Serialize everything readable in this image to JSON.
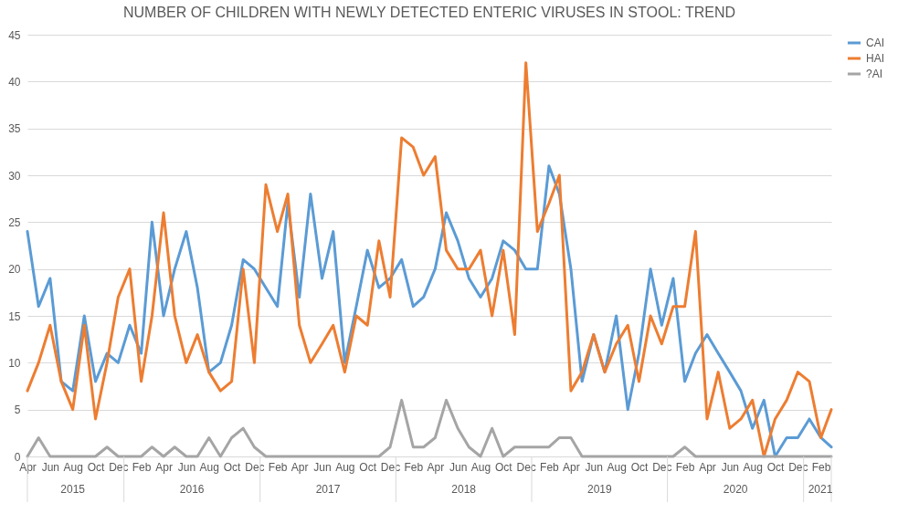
{
  "chart_data": {
    "type": "line",
    "title": "NUMBER OF CHILDREN WITH NEWLY DETECTED ENTERIC VIRUSES IN STOOL: TREND",
    "x": [
      "2015-04",
      "2015-05",
      "2015-06",
      "2015-07",
      "2015-08",
      "2015-09",
      "2015-10",
      "2015-11",
      "2015-12",
      "2016-01",
      "2016-02",
      "2016-03",
      "2016-04",
      "2016-05",
      "2016-06",
      "2016-07",
      "2016-08",
      "2016-09",
      "2016-10",
      "2016-11",
      "2016-12",
      "2017-01",
      "2017-02",
      "2017-03",
      "2017-04",
      "2017-05",
      "2017-06",
      "2017-07",
      "2017-08",
      "2017-09",
      "2017-10",
      "2017-11",
      "2017-12",
      "2018-01",
      "2018-02",
      "2018-03",
      "2018-04",
      "2018-05",
      "2018-06",
      "2018-07",
      "2018-08",
      "2018-09",
      "2018-10",
      "2018-11",
      "2018-12",
      "2019-01",
      "2019-02",
      "2019-03",
      "2019-04",
      "2019-05",
      "2019-06",
      "2019-07",
      "2019-08",
      "2019-09",
      "2019-10",
      "2019-11",
      "2019-12",
      "2020-01",
      "2020-02",
      "2020-03",
      "2020-04",
      "2020-05",
      "2020-06",
      "2020-07",
      "2020-08",
      "2020-09",
      "2020-10",
      "2020-11",
      "2020-12",
      "2021-01",
      "2021-02",
      "2021-03"
    ],
    "xticks": [
      {
        "value": "2015-04",
        "label": "Apr"
      },
      {
        "value": "2015-06",
        "label": "Jun"
      },
      {
        "value": "2015-08",
        "label": "Aug"
      },
      {
        "value": "2015-10",
        "label": "Oct"
      },
      {
        "value": "2015-12",
        "label": "Dec"
      },
      {
        "value": "2016-02",
        "label": "Feb"
      },
      {
        "value": "2016-04",
        "label": "Apr"
      },
      {
        "value": "2016-06",
        "label": "Jun"
      },
      {
        "value": "2016-08",
        "label": "Aug"
      },
      {
        "value": "2016-10",
        "label": "Oct"
      },
      {
        "value": "2016-12",
        "label": "Dec"
      },
      {
        "value": "2017-02",
        "label": "Feb"
      },
      {
        "value": "2017-04",
        "label": "Apr"
      },
      {
        "value": "2017-06",
        "label": "Jun"
      },
      {
        "value": "2017-08",
        "label": "Aug"
      },
      {
        "value": "2017-10",
        "label": "Oct"
      },
      {
        "value": "2017-12",
        "label": "Dec"
      },
      {
        "value": "2018-02",
        "label": "Feb"
      },
      {
        "value": "2018-04",
        "label": "Apr"
      },
      {
        "value": "2018-06",
        "label": "Jun"
      },
      {
        "value": "2018-08",
        "label": "Aug"
      },
      {
        "value": "2018-10",
        "label": "Oct"
      },
      {
        "value": "2018-12",
        "label": "Dec"
      },
      {
        "value": "2019-02",
        "label": "Feb"
      },
      {
        "value": "2019-04",
        "label": "Apr"
      },
      {
        "value": "2019-06",
        "label": "Jun"
      },
      {
        "value": "2019-08",
        "label": "Aug"
      },
      {
        "value": "2019-10",
        "label": "Oct"
      },
      {
        "value": "2019-12",
        "label": "Dec"
      },
      {
        "value": "2020-02",
        "label": "Feb"
      },
      {
        "value": "2020-04",
        "label": "Apr"
      },
      {
        "value": "2020-06",
        "label": "Jun"
      },
      {
        "value": "2020-08",
        "label": "Aug"
      },
      {
        "value": "2020-10",
        "label": "Oct"
      },
      {
        "value": "2020-12",
        "label": "Dec"
      },
      {
        "value": "2021-02",
        "label": "Feb"
      }
    ],
    "xlim": [
      "2015-04",
      "2021-03"
    ],
    "annotations": [
      "2015",
      "2016",
      "2017",
      "2018",
      "2019",
      "2020",
      "2021"
    ],
    "ylim": [
      0,
      45
    ],
    "yticks": [
      0,
      5,
      10,
      15,
      20,
      25,
      30,
      35,
      40,
      45
    ],
    "grid": "y",
    "legend": "right",
    "marker": "none",
    "line_style": "solid",
    "series": [
      {
        "name": "CAI",
        "color": "#5b9bd5",
        "values": [
          24,
          16,
          19,
          8,
          7,
          15,
          8,
          11,
          10,
          14,
          11,
          25,
          15,
          20,
          24,
          18,
          9,
          10,
          14,
          21,
          20,
          18,
          16,
          27,
          17,
          28,
          19,
          24,
          10,
          16,
          22,
          18,
          19,
          21,
          16,
          17,
          20,
          26,
          23,
          19,
          17,
          19,
          23,
          22,
          20,
          20,
          31,
          28,
          20,
          8,
          13,
          9,
          15,
          5,
          11,
          20,
          14,
          19,
          8,
          11,
          13,
          11,
          9,
          7,
          3,
          6,
          0,
          2,
          2,
          4,
          2,
          1
        ]
      },
      {
        "name": "HAI",
        "color": "#ed7d31",
        "values": [
          7,
          10,
          14,
          8,
          5,
          14,
          4,
          10,
          17,
          20,
          8,
          15,
          26,
          15,
          10,
          13,
          9,
          7,
          8,
          20,
          10,
          29,
          24,
          28,
          14,
          10,
          12,
          14,
          9,
          15,
          14,
          23,
          17,
          34,
          33,
          30,
          32,
          22,
          20,
          20,
          22,
          15,
          22,
          13,
          42,
          24,
          27,
          30,
          7,
          9,
          13,
          9,
          12,
          14,
          8,
          15,
          12,
          16,
          16,
          24,
          4,
          9,
          3,
          4,
          6,
          0,
          4,
          6,
          9,
          8,
          2,
          5
        ]
      },
      {
        "name": "?AI",
        "color": "#a5a5a5",
        "values": [
          0,
          2,
          0,
          0,
          0,
          0,
          0,
          1,
          0,
          0,
          0,
          1,
          0,
          1,
          0,
          0,
          2,
          0,
          2,
          3,
          1,
          0,
          0,
          0,
          0,
          0,
          0,
          0,
          0,
          0,
          0,
          0,
          1,
          6,
          1,
          1,
          2,
          6,
          3,
          1,
          0,
          3,
          0,
          1,
          1,
          1,
          1,
          2,
          2,
          0,
          0,
          0,
          0,
          0,
          0,
          0,
          0,
          0,
          1,
          0,
          0,
          0,
          0,
          0,
          0,
          0,
          0,
          0,
          0,
          0,
          0,
          0
        ]
      }
    ]
  }
}
